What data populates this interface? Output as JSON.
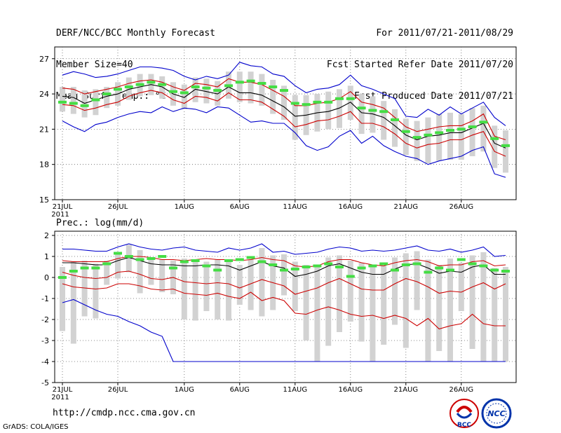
{
  "header": {
    "line1_left": "DERF/NCC/BCC Monthly Forecast",
    "line2_left": "Member Size=40",
    "line3_left": "Mean Surf. Temp.: °C",
    "line1_right": "For 2011/07/21-2011/08/29",
    "line2_right": "Fcst Started Refer Date 2011/07/20",
    "line3_right": "Fcst Produced Date 2011/07/21"
  },
  "footer": {
    "url": "http://cmdp.ncc.cma.gov.cn",
    "grads": "GrADS: COLA/IGES",
    "logo_bcc": "BCC",
    "logo_ncc": "NCC"
  },
  "colors": {
    "blue": "#0000cc",
    "red": "#cc0000",
    "black": "#000000",
    "green": "#44dd44",
    "bar": "#d2d2d2",
    "grid": "#666666"
  },
  "chart_data": [
    {
      "type": "line",
      "title": "Mean Surf. Temp.: °C",
      "x_start": "2011-07-21",
      "days": 40,
      "tick_labels": [
        "21JUL",
        "26JUL",
        "1AUG",
        "6AUG",
        "11AUG",
        "16AUG",
        "21AUG",
        "26AUG"
      ],
      "tick_days": [
        0,
        5,
        11,
        16,
        21,
        26,
        31,
        36
      ],
      "year_label": "2011",
      "ylim": [
        15,
        28
      ],
      "yticks": [
        15,
        18,
        21,
        24,
        27
      ],
      "series": [
        {
          "name": "max",
          "color": "blue",
          "values": [
            25.6,
            25.9,
            25.7,
            25.4,
            25.5,
            25.7,
            26.0,
            26.3,
            26.3,
            26.2,
            26.0,
            25.5,
            25.2,
            25.5,
            25.3,
            25.6,
            26.7,
            26.4,
            26.3,
            25.7,
            25.5,
            24.7,
            24.1,
            24.4,
            24.5,
            24.8,
            25.6,
            24.7,
            24.4,
            24.0,
            23.6,
            22.1,
            22.0,
            22.7,
            22.2,
            22.9,
            22.3,
            22.8,
            23.3,
            22.0,
            21.3
          ]
        },
        {
          "name": "mean+sd",
          "color": "red",
          "values": [
            24.5,
            24.4,
            24.0,
            24.2,
            24.4,
            24.6,
            24.9,
            25.1,
            25.2,
            25.0,
            24.6,
            24.3,
            24.9,
            24.8,
            24.6,
            25.3,
            25.0,
            25.0,
            24.8,
            24.3,
            23.8,
            23.0,
            23.0,
            23.2,
            23.3,
            23.6,
            24.2,
            23.3,
            23.1,
            22.8,
            22.0,
            21.2,
            20.8,
            21.0,
            21.2,
            21.3,
            21.3,
            21.7,
            22.3,
            20.4,
            20.1
          ]
        },
        {
          "name": "mean",
          "color": "black",
          "values": [
            23.8,
            23.7,
            23.2,
            23.5,
            23.8,
            24.0,
            24.4,
            24.6,
            24.8,
            24.6,
            24.0,
            23.7,
            24.4,
            24.2,
            24.0,
            24.6,
            24.1,
            24.1,
            23.9,
            23.4,
            22.9,
            22.1,
            22.2,
            22.4,
            22.5,
            22.8,
            23.3,
            22.4,
            22.3,
            22.0,
            21.3,
            20.5,
            20.1,
            20.4,
            20.5,
            20.7,
            20.7,
            21.1,
            21.5,
            19.8,
            19.4
          ]
        },
        {
          "name": "mean-sd",
          "color": "red",
          "values": [
            23.1,
            23.0,
            22.6,
            22.8,
            23.1,
            23.3,
            23.8,
            24.1,
            24.3,
            24.1,
            23.5,
            23.2,
            23.8,
            23.7,
            23.4,
            24.1,
            23.5,
            23.5,
            23.3,
            22.7,
            22.1,
            21.2,
            21.4,
            21.7,
            21.8,
            22.1,
            22.5,
            21.5,
            21.5,
            21.2,
            20.6,
            19.8,
            19.4,
            19.7,
            19.8,
            20.1,
            20.1,
            20.5,
            20.8,
            19.1,
            18.7
          ]
        },
        {
          "name": "min",
          "color": "blue",
          "values": [
            21.7,
            21.2,
            20.8,
            21.4,
            21.6,
            22.0,
            22.3,
            22.5,
            22.4,
            22.9,
            22.5,
            22.8,
            22.7,
            22.4,
            22.9,
            22.8,
            22.2,
            21.6,
            21.7,
            21.5,
            21.5,
            20.7,
            19.6,
            19.2,
            19.5,
            20.4,
            20.9,
            19.8,
            20.4,
            19.6,
            19.1,
            18.7,
            18.5,
            18.0,
            18.3,
            18.5,
            18.7,
            19.2,
            19.5,
            17.2,
            16.9
          ]
        }
      ],
      "bars_low": [
        22.5,
        22.3,
        22.0,
        22.2,
        22.8,
        23.0,
        23.5,
        23.8,
        23.9,
        23.6,
        23.0,
        22.7,
        23.3,
        23.2,
        23.0,
        23.6,
        23.3,
        23.2,
        23.0,
        22.3,
        21.8,
        20.1,
        20.5,
        20.8,
        21.0,
        21.1,
        21.8,
        20.6,
        20.7,
        20.1,
        19.5,
        18.8,
        18.3,
        18.1,
        18.3,
        18.4,
        18.4,
        18.7,
        19.1,
        17.7,
        17.3
      ],
      "bars_high": [
        24.6,
        24.6,
        24.3,
        24.4,
        24.6,
        25.0,
        25.4,
        25.7,
        25.7,
        25.5,
        25.0,
        24.8,
        25.4,
        25.3,
        25.1,
        25.9,
        25.9,
        25.9,
        25.7,
        25.2,
        24.7,
        23.9,
        23.9,
        24.0,
        24.2,
        24.4,
        24.7,
        24.0,
        23.8,
        23.4,
        22.7,
        21.9,
        21.7,
        22.0,
        22.3,
        22.4,
        22.3,
        22.8,
        23.0,
        21.3,
        20.9
      ],
      "obs_green": [
        23.3,
        23.2,
        23.0,
        23.5,
        24.0,
        24.4,
        24.6,
        24.8,
        25.0,
        24.8,
        24.2,
        24.1,
        24.6,
        24.5,
        24.3,
        24.7,
        25.0,
        25.1,
        24.9,
        24.6,
        24.3,
        23.2,
        23.1,
        23.3,
        23.3,
        23.6,
        23.6,
        22.8,
        22.6,
        22.5,
        21.8,
        20.8,
        20.3,
        20.5,
        20.7,
        20.9,
        21.0,
        21.2,
        21.6,
        20.2,
        19.6
      ]
    },
    {
      "type": "line",
      "title": "Prec.: log(mm/d)",
      "x_start": "2011-07-21",
      "days": 40,
      "tick_labels": [
        "21JUL",
        "26JUL",
        "1AUG",
        "6AUG",
        "11AUG",
        "16AUG",
        "21AUG",
        "26AUG"
      ],
      "tick_days": [
        0,
        5,
        11,
        16,
        21,
        26,
        31,
        36
      ],
      "year_label": "2011",
      "ylim": [
        -5,
        2.2
      ],
      "yticks": [
        -5,
        -4,
        -3,
        -2,
        -1,
        0,
        1,
        2
      ],
      "series": [
        {
          "name": "max",
          "color": "blue",
          "values": [
            1.35,
            1.35,
            1.3,
            1.25,
            1.25,
            1.45,
            1.6,
            1.45,
            1.35,
            1.3,
            1.4,
            1.45,
            1.3,
            1.25,
            1.2,
            1.4,
            1.3,
            1.4,
            1.6,
            1.2,
            1.25,
            1.1,
            1.15,
            1.2,
            1.35,
            1.45,
            1.4,
            1.25,
            1.3,
            1.25,
            1.3,
            1.4,
            1.5,
            1.3,
            1.25,
            1.35,
            1.2,
            1.3,
            1.45,
            1.0,
            1.05
          ]
        },
        {
          "name": "mean+sd",
          "color": "red",
          "values": [
            0.8,
            0.75,
            0.75,
            0.75,
            0.75,
            0.9,
            1.0,
            1.0,
            0.95,
            0.85,
            0.85,
            0.8,
            0.85,
            0.9,
            0.85,
            0.85,
            0.8,
            0.85,
            0.95,
            0.85,
            0.8,
            0.55,
            0.5,
            0.55,
            0.75,
            0.85,
            0.85,
            0.7,
            0.6,
            0.55,
            0.7,
            0.8,
            0.85,
            0.75,
            0.55,
            0.6,
            0.6,
            0.75,
            0.8,
            0.55,
            0.6
          ]
        },
        {
          "name": "mean",
          "color": "black",
          "values": [
            0.7,
            0.7,
            0.65,
            0.6,
            0.6,
            0.8,
            0.95,
            0.8,
            0.65,
            0.6,
            0.6,
            0.55,
            0.55,
            0.6,
            0.6,
            0.55,
            0.35,
            0.55,
            0.75,
            0.55,
            0.45,
            0.05,
            0.15,
            0.3,
            0.55,
            0.65,
            0.45,
            0.25,
            0.15,
            0.15,
            0.4,
            0.6,
            0.65,
            0.45,
            0.2,
            0.3,
            0.25,
            0.5,
            0.6,
            0.15,
            0.15
          ]
        },
        {
          "name": "mean-sd",
          "color": "red",
          "values": [
            0.25,
            0.1,
            0.0,
            -0.05,
            0.0,
            0.25,
            0.3,
            0.15,
            -0.05,
            -0.1,
            0.0,
            -0.2,
            -0.25,
            -0.3,
            -0.25,
            -0.3,
            -0.5,
            -0.3,
            -0.1,
            -0.25,
            -0.4,
            -0.8,
            -0.65,
            -0.5,
            -0.25,
            -0.05,
            -0.3,
            -0.55,
            -0.6,
            -0.6,
            -0.3,
            -0.05,
            -0.2,
            -0.45,
            -0.75,
            -0.65,
            -0.7,
            -0.45,
            -0.25,
            -0.55,
            -0.3
          ]
        },
        {
          "name": "mean-2sd",
          "color": "red",
          "values": [
            -0.3,
            -0.45,
            -0.5,
            -0.55,
            -0.5,
            -0.3,
            -0.3,
            -0.4,
            -0.55,
            -0.6,
            -0.55,
            -0.75,
            -0.8,
            -0.85,
            -0.75,
            -0.9,
            -1.0,
            -0.7,
            -1.1,
            -0.95,
            -1.1,
            -1.7,
            -1.75,
            -1.55,
            -1.4,
            -1.55,
            -1.75,
            -1.85,
            -1.8,
            -1.95,
            -1.8,
            -1.95,
            -2.3,
            -1.95,
            -2.45,
            -2.3,
            -2.2,
            -1.75,
            -2.2,
            -2.3,
            -2.3
          ]
        },
        {
          "name": "min",
          "color": "blue",
          "values": [
            -1.2,
            -1.05,
            -1.3,
            -1.55,
            -1.75,
            -1.85,
            -2.1,
            -2.3,
            -2.6,
            -2.8,
            -4.0,
            -4.0,
            -4.0,
            -4.0,
            -4.0,
            -4.0,
            -4.0,
            -4.0,
            -4.0,
            -4.0,
            -4.0,
            -4.0,
            -4.0,
            -4.0,
            -4.0,
            -4.0,
            -4.0,
            -4.0,
            -4.0,
            -4.0,
            -4.0,
            -4.0,
            -4.0,
            -4.0,
            -4.0,
            -4.0,
            -4.0,
            -4.0,
            -4.0,
            -4.0,
            -4.0
          ]
        }
      ],
      "bars_low": [
        -2.55,
        -3.15,
        -1.85,
        -1.95,
        -0.35,
        -0.05,
        0.25,
        -0.75,
        -0.35,
        -0.7,
        -0.8,
        -2.0,
        -2.05,
        -1.6,
        -2.0,
        -2.05,
        -1.3,
        -1.55,
        -1.85,
        -1.55,
        -0.85,
        -1.6,
        -3.0,
        -4.0,
        -3.25,
        -2.6,
        -2.1,
        -3.05,
        -4.0,
        -3.2,
        -2.25,
        -3.35,
        -1.55,
        -4.0,
        -3.5,
        -4.0,
        -1.6,
        -3.4,
        -4.0,
        -4.0,
        -4.0
      ],
      "bars_high": [
        0.5,
        0.75,
        0.8,
        0.65,
        0.8,
        1.2,
        1.55,
        1.3,
        0.95,
        0.85,
        0.8,
        0.9,
        0.85,
        0.75,
        0.85,
        0.8,
        0.6,
        0.85,
        1.4,
        1.05,
        1.1,
        0.75,
        0.6,
        0.55,
        0.95,
        1.05,
        0.8,
        0.7,
        0.6,
        0.55,
        0.95,
        1.15,
        1.25,
        0.85,
        0.6,
        0.9,
        0.7,
        1.05,
        1.2,
        0.45,
        0.5
      ],
      "obs_green": [
        0.0,
        0.3,
        0.45,
        0.45,
        0.65,
        1.15,
        1.0,
        0.85,
        0.9,
        1.0,
        0.45,
        0.75,
        0.8,
        0.55,
        0.35,
        0.8,
        0.85,
        0.95,
        0.75,
        0.6,
        0.35,
        0.4,
        0.5,
        0.55,
        0.65,
        0.5,
        0.05,
        0.45,
        0.55,
        0.65,
        0.35,
        0.6,
        0.65,
        0.25,
        0.45,
        0.35,
        0.85,
        0.65,
        0.55,
        0.35,
        0.3
      ]
    }
  ]
}
